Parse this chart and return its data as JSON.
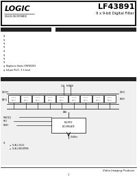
{
  "title_part": "LF43891",
  "title_sub": "9 x 9-bit Digital Filter",
  "brand": "LOGIC",
  "brand_sub": "DEVICES INCORPORATED",
  "header_bg": "#1a1a1a",
  "body_bg": "#ffffff",
  "bar_color": "#222222",
  "footer_text": "Video Imaging Products",
  "bullet_lines": [
    "q",
    "q",
    "q",
    "q",
    "q",
    "q",
    "q",
    "q",
    "q  Replaces Harris HSP45091",
    "q  64-pin PLCC, 3.3-lead"
  ]
}
